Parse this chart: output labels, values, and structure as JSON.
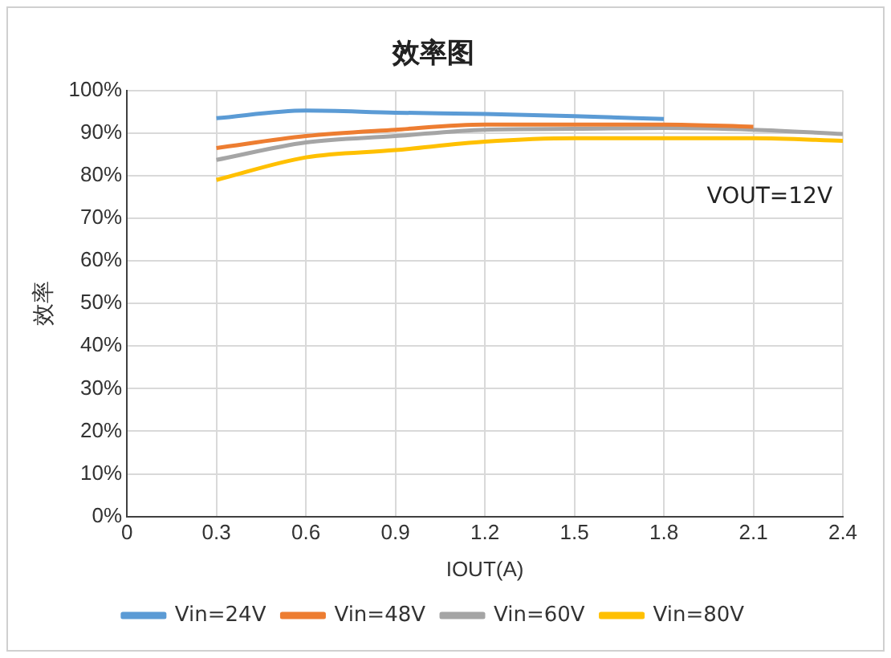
{
  "chart_data": {
    "type": "line",
    "title": "效率图",
    "xlabel": "IOUT(A)",
    "ylabel": "效率",
    "annotations": [
      "VOUT=12V"
    ],
    "xlim": [
      0,
      2.4
    ],
    "xticks": [
      0,
      0.3,
      0.6,
      0.9,
      1.2,
      1.5,
      1.8,
      2.1,
      2.4
    ],
    "ylim": [
      0,
      100
    ],
    "yticks": [
      {
        "value": 0,
        "label": "0%"
      },
      {
        "value": 10,
        "label": "10%"
      },
      {
        "value": 20,
        "label": "20%"
      },
      {
        "value": 30,
        "label": "30%"
      },
      {
        "value": 40,
        "label": "40%"
      },
      {
        "value": 50,
        "label": "50%"
      },
      {
        "value": 60,
        "label": "60%"
      },
      {
        "value": 70,
        "label": "70%"
      },
      {
        "value": 80,
        "label": "80%"
      },
      {
        "value": 90,
        "label": "90%"
      },
      {
        "value": 100,
        "label": "100%"
      }
    ],
    "grid": true,
    "legend": "bottom",
    "marker": "none",
    "line_style": "solid",
    "series": [
      {
        "name": "Vin=24V",
        "color": "#5b9bd5",
        "x": [
          0.3,
          0.6,
          0.9,
          1.2,
          1.5,
          1.8
        ],
        "values": [
          93.5,
          95.3,
          94.8,
          94.5,
          94,
          93.3
        ]
      },
      {
        "name": "Vin=48V",
        "color": "#ed7d31",
        "x": [
          0.3,
          0.6,
          0.9,
          1.2,
          1.5,
          1.8,
          2.1
        ],
        "values": [
          86.5,
          89.3,
          90.8,
          92,
          92,
          92,
          91.5
        ]
      },
      {
        "name": "Vin=60V",
        "color": "#a5a5a5",
        "x": [
          0.3,
          0.6,
          0.9,
          1.2,
          1.5,
          1.8,
          2.1,
          2.4
        ],
        "values": [
          83.7,
          87.8,
          89.3,
          90.8,
          91,
          91.2,
          90.8,
          89.8
        ]
      },
      {
        "name": "Vin=80V",
        "color": "#ffc000",
        "x": [
          0.3,
          0.6,
          0.9,
          1.2,
          1.5,
          1.8,
          2.1,
          2.4
        ],
        "values": [
          79,
          84.3,
          86,
          88,
          88.8,
          88.8,
          88.8,
          88.2
        ]
      }
    ]
  }
}
